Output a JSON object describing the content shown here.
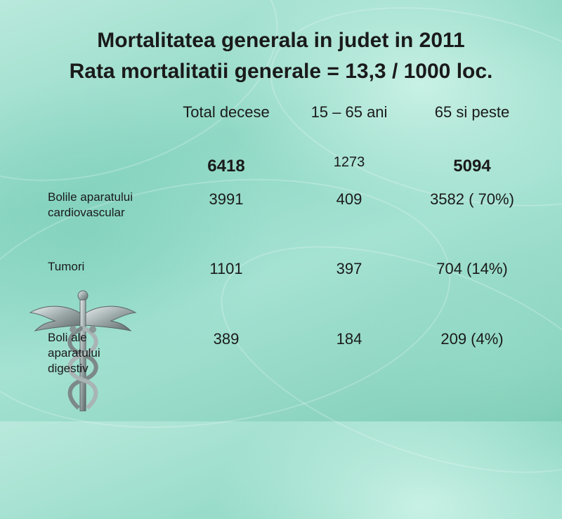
{
  "slide": {
    "title_line1": "Mortalitatea generala in judet in 2011",
    "title_line2": "Rata mortalitatii generale = 13,3 / 1000 loc."
  },
  "table": {
    "headers": [
      "Total decese",
      "15 – 65 ani",
      "65 si peste"
    ],
    "totals": [
      "6418",
      "1273",
      "5094"
    ],
    "rows": [
      {
        "label_lines": [
          "Bolile aparatului",
          "cardiovascular"
        ],
        "values": [
          "3991",
          "409",
          "3582 ( 70%)"
        ]
      },
      {
        "label_lines": [
          "Tumori"
        ],
        "values": [
          "1101",
          "397",
          "704 (14%)"
        ]
      },
      {
        "label_lines": [
          "Boli ale",
          "aparatului",
          "digestiv"
        ],
        "values": [
          "389",
          "184",
          "209 (4%)"
        ]
      }
    ]
  },
  "logo": {
    "icon": "caduceus-icon"
  }
}
